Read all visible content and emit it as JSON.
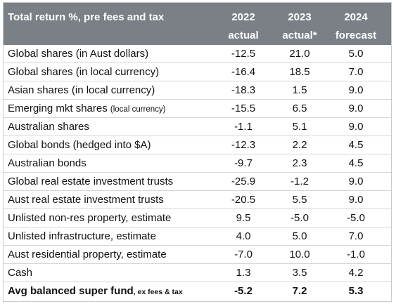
{
  "header": {
    "title": "Total return %, pre fees and tax",
    "columns": [
      {
        "line1": "2022",
        "line2": "actual"
      },
      {
        "line1": "2023",
        "line2": "actual*"
      },
      {
        "line1": "2024",
        "line2": "forecast"
      }
    ]
  },
  "rows": [
    {
      "label": "Global shares (in Aust dollars)",
      "label_small": "",
      "v2022": "-12.5",
      "v2023": "21.0",
      "v2024": "5.0"
    },
    {
      "label": "Global shares (in local currency)",
      "label_small": "",
      "v2022": "-16.4",
      "v2023": "18.5",
      "v2024": "7.0"
    },
    {
      "label": "Asian shares (in local currency)",
      "label_small": "",
      "v2022": "-18.3",
      "v2023": "1.5",
      "v2024": "9.0"
    },
    {
      "label": "Emerging mkt shares ",
      "label_small": "(local currency)",
      "v2022": "-15.5",
      "v2023": "6.5",
      "v2024": "9.0"
    },
    {
      "label": "Australian shares",
      "label_small": "",
      "v2022": "-1.1",
      "v2023": "5.1",
      "v2024": "9.0"
    },
    {
      "label": "Global bonds (hedged into $A)",
      "label_small": "",
      "v2022": "-12.3",
      "v2023": "2.2",
      "v2024": "4.5"
    },
    {
      "label": "Australian bonds",
      "label_small": "",
      "v2022": "-9.7",
      "v2023": "2.3",
      "v2024": "4.5"
    },
    {
      "label": "Global real estate investment trusts",
      "label_small": "",
      "v2022": "-25.9",
      "v2023": "-1.2",
      "v2024": "9.0"
    },
    {
      "label": "Aust real estate investment trusts",
      "label_small": "",
      "v2022": "-20.5",
      "v2023": "5.5",
      "v2024": "9.0"
    },
    {
      "label": "Unlisted non-res property, estimate",
      "label_small": "",
      "v2022": "9.5",
      "v2023": "-5.0",
      "v2024": "-5.0"
    },
    {
      "label": "Unlisted infrastructure, estimate",
      "label_small": "",
      "v2022": "4.0",
      "v2023": "5.0",
      "v2024": "7.0"
    },
    {
      "label": "Aust residential property, estimate",
      "label_small": "",
      "v2022": "-7.0",
      "v2023": "10.0",
      "v2024": "-1.0"
    },
    {
      "label": "Cash",
      "label_small": "",
      "v2022": "1.3",
      "v2023": "3.5",
      "v2024": "4.2"
    }
  ],
  "total": {
    "label": "Avg balanced super fund",
    "label_small": ", ex fees & tax",
    "v2022": "-5.2",
    "v2023": "7.2",
    "v2024": "5.3"
  },
  "colors": {
    "header_bg": "#7a8086",
    "header_text": "#ffffff",
    "row_divider": "#d6d6d6"
  }
}
